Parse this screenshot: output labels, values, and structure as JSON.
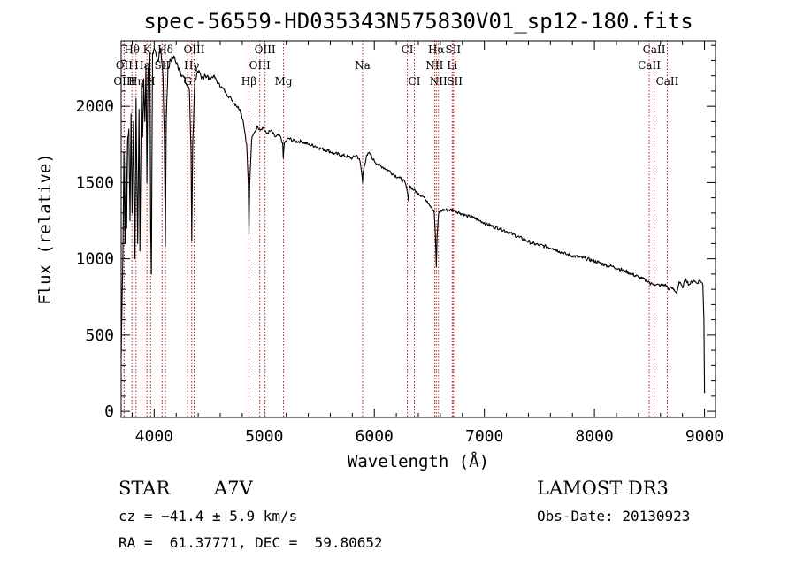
{
  "chart_data": {
    "type": "line",
    "title": "spec-56559-HD035343N575830V01_sp12-180.fits",
    "xlabel": "Wavelength (Å)",
    "ylabel": "Flux (relative)",
    "xlim": [
      3700,
      9100
    ],
    "ylim": [
      -40,
      2430
    ],
    "x_ticks": [
      4000,
      5000,
      6000,
      7000,
      8000,
      9000
    ],
    "y_ticks": [
      0,
      500,
      1000,
      1500,
      2000
    ],
    "series": [
      {
        "name": "spectrum",
        "points": [
          [
            3700,
            350
          ],
          [
            3715,
            1000
          ],
          [
            3725,
            1700
          ],
          [
            3735,
            1100
          ],
          [
            3745,
            1780
          ],
          [
            3750,
            1200
          ],
          [
            3760,
            1800
          ],
          [
            3770,
            1850
          ],
          [
            3780,
            1250
          ],
          [
            3790,
            1950
          ],
          [
            3800,
            1300
          ],
          [
            3812,
            1900
          ],
          [
            3825,
            1000
          ],
          [
            3835,
            2050
          ],
          [
            3850,
            1100
          ],
          [
            3862,
            1980
          ],
          [
            3870,
            1050
          ],
          [
            3885,
            2150
          ],
          [
            3895,
            1800
          ],
          [
            3905,
            2180
          ],
          [
            3915,
            1900
          ],
          [
            3925,
            2260
          ],
          [
            3934,
            1500
          ],
          [
            3945,
            2250
          ],
          [
            3960,
            2350
          ],
          [
            3968,
            1200
          ],
          [
            3975,
            900
          ],
          [
            3985,
            2350
          ],
          [
            4000,
            2380
          ],
          [
            4020,
            2330
          ],
          [
            4040,
            2300
          ],
          [
            4060,
            2380
          ],
          [
            4080,
            2200
          ],
          [
            4092,
            1800
          ],
          [
            4102,
            1080
          ],
          [
            4110,
            1900
          ],
          [
            4125,
            2250
          ],
          [
            4150,
            2300
          ],
          [
            4180,
            2330
          ],
          [
            4200,
            2280
          ],
          [
            4225,
            2250
          ],
          [
            4260,
            2200
          ],
          [
            4290,
            2150
          ],
          [
            4320,
            2100
          ],
          [
            4335,
            1700
          ],
          [
            4341,
            1120
          ],
          [
            4350,
            1750
          ],
          [
            4370,
            2180
          ],
          [
            4400,
            2220
          ],
          [
            4430,
            2180
          ],
          [
            4460,
            2210
          ],
          [
            4500,
            2180
          ],
          [
            4540,
            2200
          ],
          [
            4580,
            2150
          ],
          [
            4620,
            2120
          ],
          [
            4660,
            2080
          ],
          [
            4700,
            2050
          ],
          [
            4740,
            2010
          ],
          [
            4780,
            1980
          ],
          [
            4810,
            1900
          ],
          [
            4840,
            1750
          ],
          [
            4855,
            1500
          ],
          [
            4861,
            1150
          ],
          [
            4868,
            1500
          ],
          [
            4885,
            1780
          ],
          [
            4910,
            1830
          ],
          [
            4940,
            1870
          ],
          [
            4960,
            1850
          ],
          [
            4990,
            1860
          ],
          [
            5020,
            1820
          ],
          [
            5060,
            1840
          ],
          [
            5100,
            1800
          ],
          [
            5140,
            1810
          ],
          [
            5167,
            1760
          ],
          [
            5173,
            1660
          ],
          [
            5183,
            1760
          ],
          [
            5220,
            1790
          ],
          [
            5280,
            1770
          ],
          [
            5340,
            1770
          ],
          [
            5400,
            1750
          ],
          [
            5460,
            1740
          ],
          [
            5520,
            1720
          ],
          [
            5580,
            1710
          ],
          [
            5640,
            1690
          ],
          [
            5700,
            1680
          ],
          [
            5760,
            1670
          ],
          [
            5800,
            1660
          ],
          [
            5840,
            1680
          ],
          [
            5870,
            1640
          ],
          [
            5889,
            1540
          ],
          [
            5893,
            1500
          ],
          [
            5897,
            1560
          ],
          [
            5930,
            1680
          ],
          [
            5960,
            1690
          ],
          [
            5990,
            1650
          ],
          [
            6030,
            1620
          ],
          [
            6080,
            1600
          ],
          [
            6130,
            1580
          ],
          [
            6180,
            1550
          ],
          [
            6230,
            1530
          ],
          [
            6280,
            1500
          ],
          [
            6300,
            1440
          ],
          [
            6310,
            1380
          ],
          [
            6320,
            1480
          ],
          [
            6360,
            1450
          ],
          [
            6400,
            1430
          ],
          [
            6440,
            1410
          ],
          [
            6480,
            1380
          ],
          [
            6520,
            1340
          ],
          [
            6545,
            1300
          ],
          [
            6555,
            1150
          ],
          [
            6563,
            950
          ],
          [
            6570,
            1150
          ],
          [
            6585,
            1300
          ],
          [
            6620,
            1320
          ],
          [
            6680,
            1320
          ],
          [
            6720,
            1320
          ],
          [
            6780,
            1300
          ],
          [
            6840,
            1280
          ],
          [
            6900,
            1270
          ],
          [
            6960,
            1250
          ],
          [
            7020,
            1230
          ],
          [
            7080,
            1210
          ],
          [
            7140,
            1200
          ],
          [
            7200,
            1180
          ],
          [
            7260,
            1160
          ],
          [
            7320,
            1140
          ],
          [
            7380,
            1120
          ],
          [
            7440,
            1100
          ],
          [
            7500,
            1090
          ],
          [
            7560,
            1080
          ],
          [
            7620,
            1070
          ],
          [
            7680,
            1050
          ],
          [
            7740,
            1030
          ],
          [
            7800,
            1020
          ],
          [
            7860,
            1010
          ],
          [
            7920,
            1000
          ],
          [
            7980,
            990
          ],
          [
            8040,
            975
          ],
          [
            8100,
            960
          ],
          [
            8160,
            950
          ],
          [
            8220,
            935
          ],
          [
            8280,
            920
          ],
          [
            8340,
            900
          ],
          [
            8400,
            880
          ],
          [
            8460,
            860
          ],
          [
            8498,
            850
          ],
          [
            8510,
            830
          ],
          [
            8520,
            840
          ],
          [
            8542,
            835
          ],
          [
            8560,
            830
          ],
          [
            8600,
            825
          ],
          [
            8640,
            830
          ],
          [
            8662,
            815
          ],
          [
            8680,
            800
          ],
          [
            8700,
            810
          ],
          [
            8750,
            780
          ],
          [
            8770,
            850
          ],
          [
            8800,
            810
          ],
          [
            8830,
            870
          ],
          [
            8860,
            830
          ],
          [
            8900,
            860
          ],
          [
            8930,
            840
          ],
          [
            8960,
            860
          ],
          [
            8985,
            830
          ],
          [
            8995,
            600
          ],
          [
            9000,
            120
          ]
        ]
      }
    ],
    "lines": [
      {
        "label": "Hθ",
        "wavelength": 3798,
        "row": 0
      },
      {
        "label": "OII",
        "wavelength": 3727,
        "row": 1
      },
      {
        "label": "OIII",
        "wavelength": 3727,
        "row": 2
      },
      {
        "label": "K",
        "wavelength": 3934,
        "row": 0
      },
      {
        "label": "Hε",
        "wavelength": 3889,
        "row": 1
      },
      {
        "label": "Hη",
        "wavelength": 3835,
        "row": 2
      },
      {
        "label": "Hδ",
        "wavelength": 4102,
        "row": 0
      },
      {
        "label": "SII",
        "wavelength": 4072,
        "row": 1
      },
      {
        "label": "H",
        "wavelength": 3968,
        "row": 2
      },
      {
        "label": "OIII",
        "wavelength": 4363,
        "row": 0
      },
      {
        "label": "Hγ",
        "wavelength": 4341,
        "row": 1
      },
      {
        "label": "G",
        "wavelength": 4304,
        "row": 2
      },
      {
        "label": "OIII",
        "wavelength": 5007,
        "row": 0
      },
      {
        "label": "OIII",
        "wavelength": 4959,
        "row": 1
      },
      {
        "label": "Hβ",
        "wavelength": 4861,
        "row": 2
      },
      {
        "label": "Mg",
        "wavelength": 5175,
        "row": 2
      },
      {
        "label": "Na",
        "wavelength": 5893,
        "row": 1
      },
      {
        "label": "CI",
        "wavelength": 6300,
        "row": 0
      },
      {
        "label": "CI",
        "wavelength": 6364,
        "row": 2
      },
      {
        "label": "Hα",
        "wavelength": 6563,
        "row": 0
      },
      {
        "label": "NII",
        "wavelength": 6548,
        "row": 1
      },
      {
        "label": "NII",
        "wavelength": 6583,
        "row": 2
      },
      {
        "label": "SII",
        "wavelength": 6716,
        "row": 0
      },
      {
        "label": "Li",
        "wavelength": 6708,
        "row": 1
      },
      {
        "label": "SII",
        "wavelength": 6731,
        "row": 2
      },
      {
        "label": "CaII",
        "wavelength": 8542,
        "row": 0
      },
      {
        "label": "CaII",
        "wavelength": 8498,
        "row": 1
      },
      {
        "label": "CaII",
        "wavelength": 8662,
        "row": 2
      }
    ],
    "line_color": "#b22222"
  },
  "footer": {
    "class": "STAR",
    "subclass": "A7V",
    "survey": "LAMOST DR3",
    "cz": "cz = −41.4 ± 5.9 km/s",
    "obs_date": "Obs-Date: 20130923",
    "coords": "RA =  61.37771, DEC =  59.80652"
  }
}
